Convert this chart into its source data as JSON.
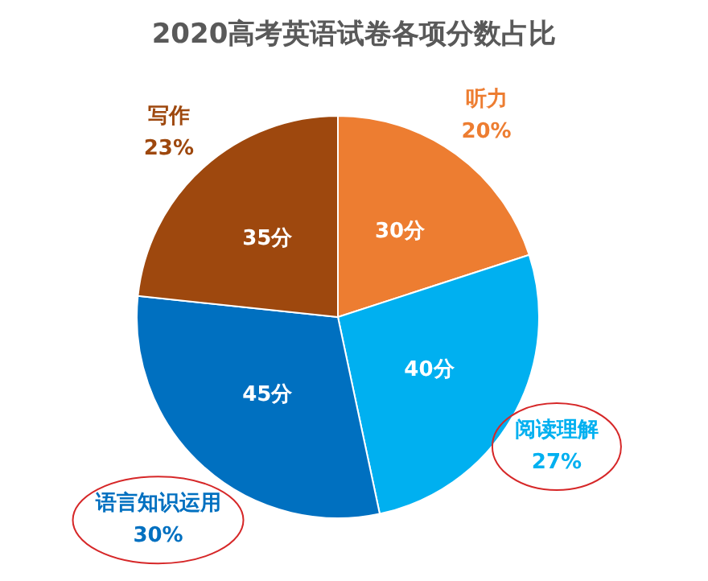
{
  "chart_data": {
    "type": "pie",
    "title": "2020高考英语试卷各项分数占比",
    "categories": [
      "听力",
      "阅读理解",
      "语言知识运用",
      "写作"
    ],
    "values": [
      30,
      40,
      45,
      35
    ],
    "value_labels": [
      "30分",
      "40分",
      "45分",
      "35分"
    ],
    "colors": [
      "#ed7d31",
      "#00b0f0",
      "#0070c0",
      "#9e480e"
    ],
    "annotations": [
      "20%",
      "27%",
      "30%",
      "23%"
    ],
    "legend": false
  }
}
